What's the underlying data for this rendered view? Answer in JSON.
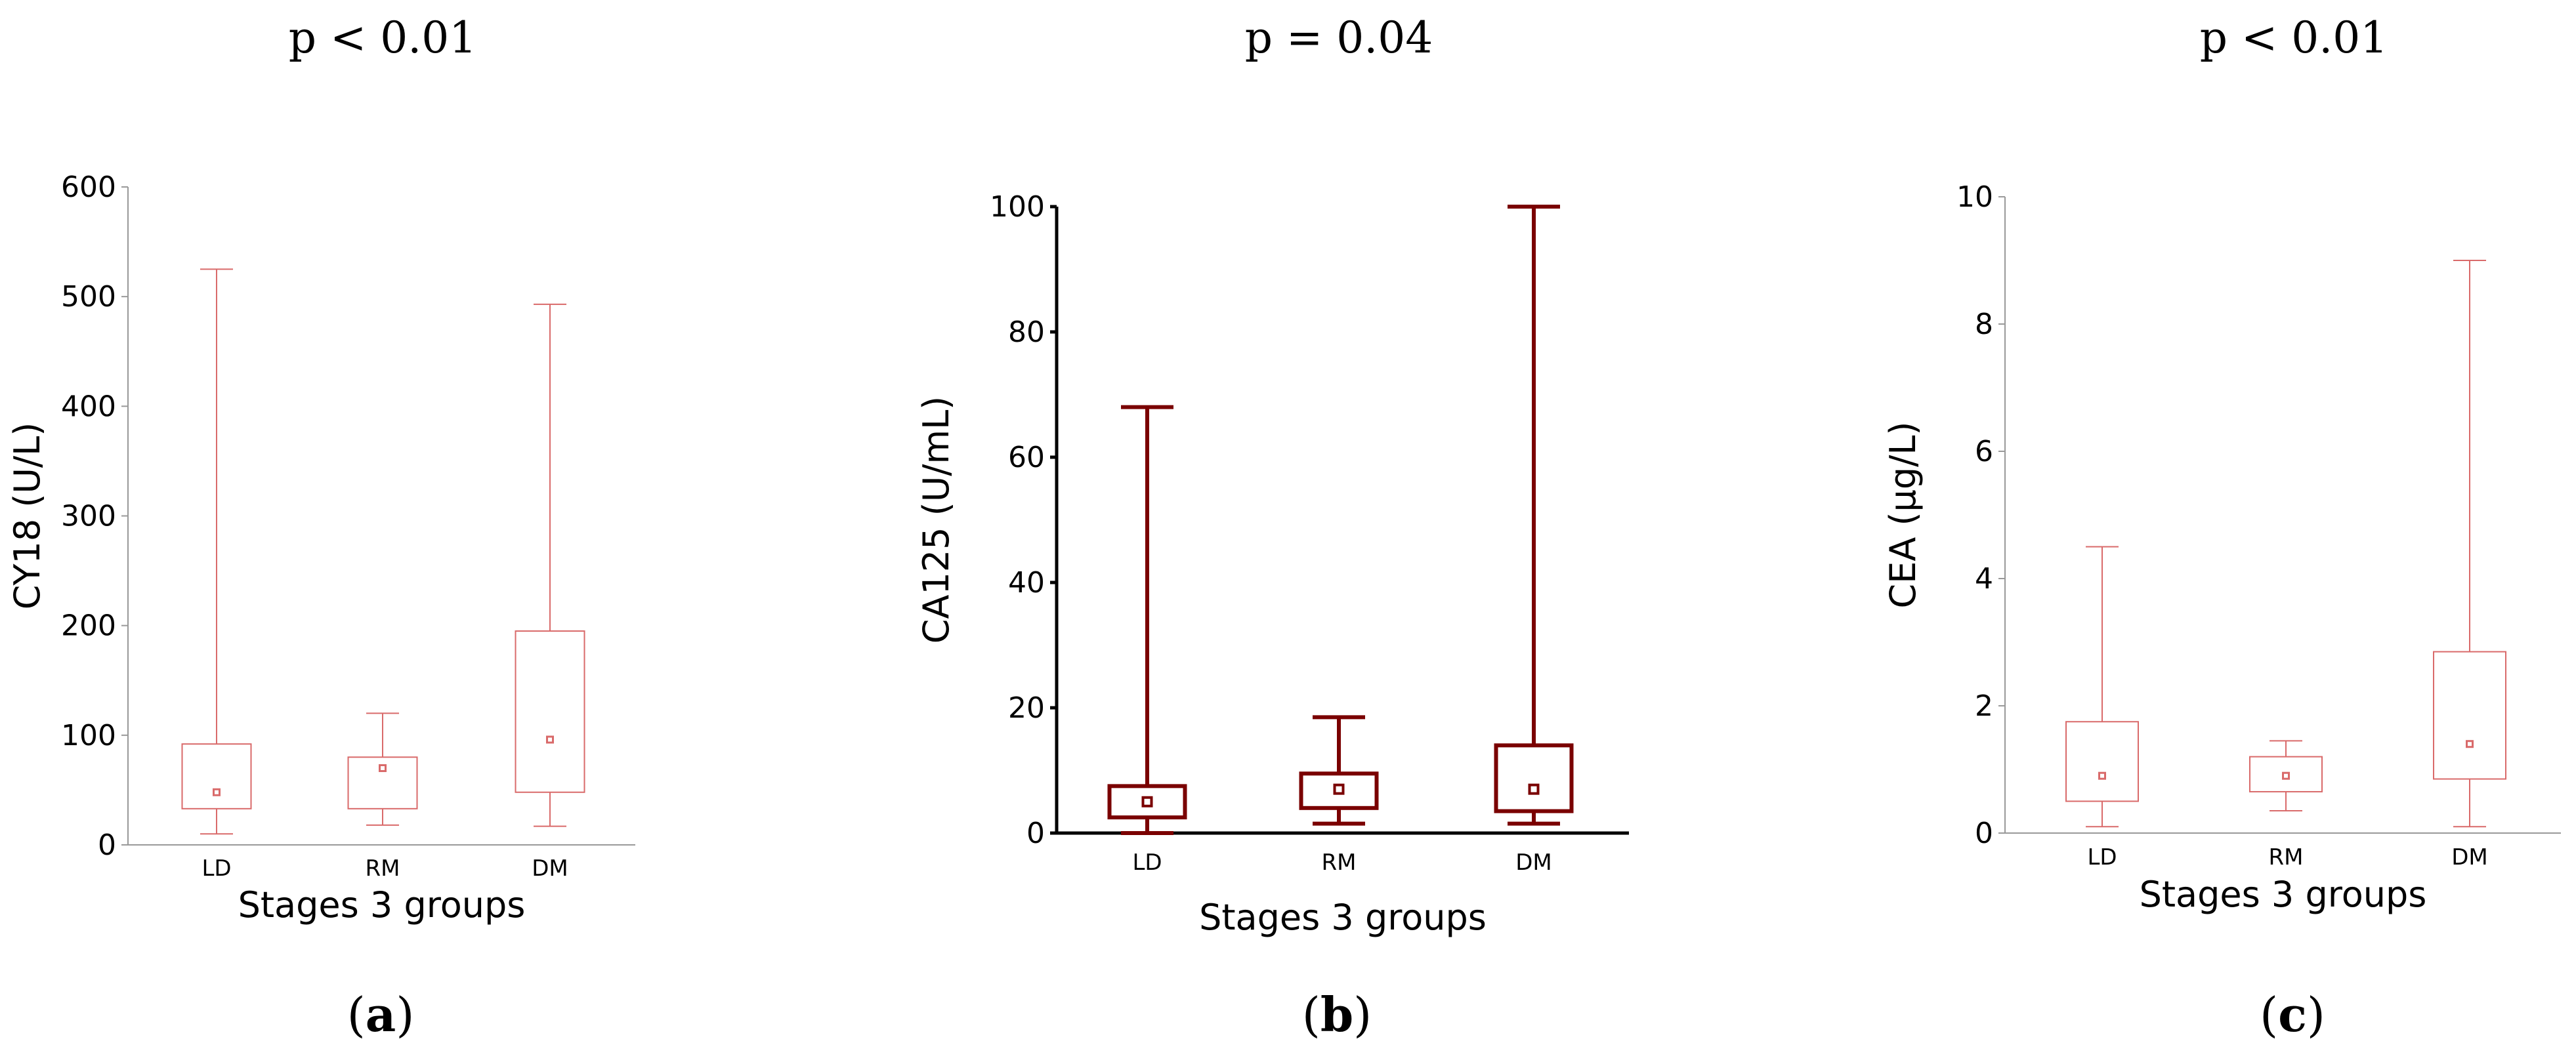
{
  "figure": {
    "panels": [
      {
        "letter": "a",
        "p_value": "p < 0.01"
      },
      {
        "letter": "b",
        "p_value": "p = 0.04"
      },
      {
        "letter": "c",
        "p_value": "p < 0.01"
      }
    ]
  },
  "chart_data": [
    {
      "type": "box",
      "ylabel": "CY18 (U/L)",
      "xlabel": "Stages 3 groups",
      "categories": [
        "LD",
        "RM",
        "DM"
      ],
      "ylim": [
        0,
        600
      ],
      "yticks": [
        0,
        100,
        200,
        300,
        400,
        500,
        600
      ],
      "color": "#d96a6a",
      "style": "light",
      "boxes": [
        {
          "min": 10,
          "q1": 33,
          "median": 48,
          "q3": 92,
          "max": 525
        },
        {
          "min": 18,
          "q1": 33,
          "median": 70,
          "q3": 80,
          "max": 120
        },
        {
          "min": 17,
          "q1": 48,
          "median": 96,
          "q3": 195,
          "max": 493
        }
      ]
    },
    {
      "type": "box",
      "ylabel": "CA125 (U/mL)",
      "xlabel": "Stages 3 groups",
      "categories": [
        "LD",
        "RM",
        "DM"
      ],
      "ylim": [
        0,
        100
      ],
      "yticks": [
        0,
        20,
        40,
        60,
        80,
        100
      ],
      "color": "#7a0000",
      "style": "bold",
      "boxes": [
        {
          "min": 0,
          "q1": 2.5,
          "median": 5,
          "q3": 7.5,
          "max": 68
        },
        {
          "min": 1.5,
          "q1": 4,
          "median": 7,
          "q3": 9.5,
          "max": 18.5
        },
        {
          "min": 1.5,
          "q1": 3.5,
          "median": 7,
          "q3": 14,
          "max": 100
        }
      ]
    },
    {
      "type": "box",
      "ylabel": "CEA (μg/L)",
      "xlabel": "Stages 3 groups",
      "categories": [
        "LD",
        "RM",
        "DM"
      ],
      "ylim": [
        0,
        10
      ],
      "yticks": [
        0,
        2,
        4,
        6,
        8,
        10
      ],
      "color": "#d96a6a",
      "style": "light",
      "boxes": [
        {
          "min": 0.1,
          "q1": 0.5,
          "median": 0.9,
          "q3": 1.75,
          "max": 4.5
        },
        {
          "min": 0.35,
          "q1": 0.65,
          "median": 0.9,
          "q3": 1.2,
          "max": 1.45
        },
        {
          "min": 0.1,
          "q1": 0.85,
          "median": 1.4,
          "q3": 2.85,
          "max": 9.0
        }
      ]
    }
  ]
}
